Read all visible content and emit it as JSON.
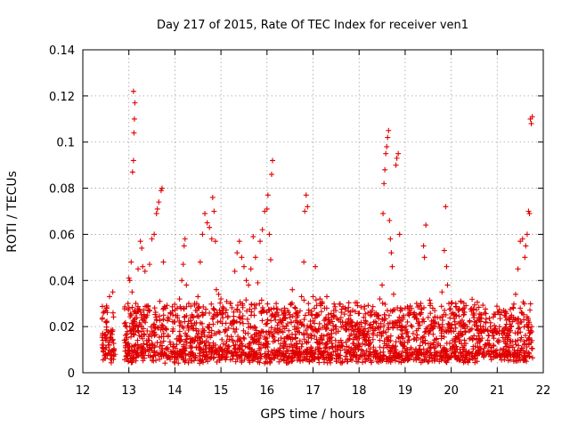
{
  "chart_data": {
    "type": "scatter",
    "title": "Day 217 of 2015, Rate Of TEC Index for receiver ven1",
    "xlabel": "GPS time / hours",
    "ylabel": "ROTI / TECUs",
    "xlim": [
      12,
      22
    ],
    "ylim": [
      0,
      0.14
    ],
    "x_ticks": [
      "12",
      "13",
      "14",
      "15",
      "16",
      "17",
      "18",
      "19",
      "20",
      "21",
      "22"
    ],
    "y_ticks": [
      "0",
      "0.02",
      "0.04",
      "0.06",
      "0.08",
      "0.1",
      "0.12",
      "0.14"
    ],
    "grid": true,
    "marker": "+",
    "color": "#e00000",
    "series": [
      {
        "name": "ven1",
        "points": [
          [
            12.42,
            0.012
          ],
          [
            12.45,
            0.009
          ],
          [
            12.48,
            0.015
          ],
          [
            12.5,
            0.022
          ],
          [
            12.52,
            0.028
          ],
          [
            12.55,
            0.012
          ],
          [
            12.58,
            0.033
          ],
          [
            12.6,
            0.006
          ],
          [
            12.62,
            0.018
          ],
          [
            12.65,
            0.035
          ],
          [
            12.67,
            0.01
          ],
          [
            12.7,
            0.008
          ],
          [
            12.92,
            0.013
          ],
          [
            12.95,
            0.02
          ],
          [
            12.98,
            0.03
          ],
          [
            13.0,
            0.041
          ],
          [
            13.02,
            0.04
          ],
          [
            13.05,
            0.048
          ],
          [
            13.07,
            0.035
          ],
          [
            13.08,
            0.087
          ],
          [
            13.1,
            0.092
          ],
          [
            13.11,
            0.104
          ],
          [
            13.12,
            0.11
          ],
          [
            13.13,
            0.117
          ],
          [
            13.1,
            0.122
          ],
          [
            13.15,
            0.02
          ],
          [
            13.2,
            0.045
          ],
          [
            13.25,
            0.057
          ],
          [
            13.28,
            0.054
          ],
          [
            13.3,
            0.046
          ],
          [
            13.35,
            0.044
          ],
          [
            13.4,
            0.025
          ],
          [
            13.45,
            0.047
          ],
          [
            13.5,
            0.058
          ],
          [
            13.55,
            0.06
          ],
          [
            13.6,
            0.069
          ],
          [
            13.62,
            0.071
          ],
          [
            13.65,
            0.074
          ],
          [
            13.7,
            0.079
          ],
          [
            13.72,
            0.08
          ],
          [
            13.75,
            0.048
          ],
          [
            13.8,
            0.028
          ],
          [
            13.85,
            0.024
          ],
          [
            13.9,
            0.026
          ],
          [
            13.95,
            0.018
          ],
          [
            14.0,
            0.022
          ],
          [
            14.05,
            0.028
          ],
          [
            14.1,
            0.032
          ],
          [
            14.15,
            0.04
          ],
          [
            14.18,
            0.047
          ],
          [
            14.2,
            0.055
          ],
          [
            14.22,
            0.058
          ],
          [
            14.25,
            0.038
          ],
          [
            14.3,
            0.03
          ],
          [
            14.35,
            0.02
          ],
          [
            14.4,
            0.024
          ],
          [
            14.45,
            0.027
          ],
          [
            14.5,
            0.033
          ],
          [
            14.55,
            0.048
          ],
          [
            14.6,
            0.06
          ],
          [
            14.65,
            0.069
          ],
          [
            14.7,
            0.065
          ],
          [
            14.75,
            0.063
          ],
          [
            14.8,
            0.058
          ],
          [
            14.82,
            0.076
          ],
          [
            14.85,
            0.07
          ],
          [
            14.88,
            0.057
          ],
          [
            14.9,
            0.036
          ],
          [
            14.95,
            0.034
          ],
          [
            15.0,
            0.032
          ],
          [
            15.05,
            0.028
          ],
          [
            15.1,
            0.026
          ],
          [
            15.15,
            0.024
          ],
          [
            15.2,
            0.03
          ],
          [
            15.25,
            0.022
          ],
          [
            15.3,
            0.044
          ],
          [
            15.35,
            0.052
          ],
          [
            15.4,
            0.057
          ],
          [
            15.45,
            0.05
          ],
          [
            15.5,
            0.046
          ],
          [
            15.55,
            0.04
          ],
          [
            15.6,
            0.038
          ],
          [
            15.65,
            0.045
          ],
          [
            15.7,
            0.059
          ],
          [
            15.75,
            0.05
          ],
          [
            15.8,
            0.039
          ],
          [
            15.85,
            0.057
          ],
          [
            15.9,
            0.062
          ],
          [
            15.95,
            0.07
          ],
          [
            16.0,
            0.071
          ],
          [
            16.02,
            0.077
          ],
          [
            16.05,
            0.06
          ],
          [
            16.08,
            0.049
          ],
          [
            16.1,
            0.086
          ],
          [
            16.12,
            0.092
          ],
          [
            16.15,
            0.028
          ],
          [
            16.2,
            0.03
          ],
          [
            16.25,
            0.025
          ],
          [
            16.3,
            0.022
          ],
          [
            16.35,
            0.02
          ],
          [
            16.4,
            0.025
          ],
          [
            16.45,
            0.027
          ],
          [
            16.5,
            0.024
          ],
          [
            16.55,
            0.036
          ],
          [
            16.6,
            0.02
          ],
          [
            16.65,
            0.024
          ],
          [
            16.7,
            0.022
          ],
          [
            16.75,
            0.033
          ],
          [
            16.8,
            0.048
          ],
          [
            16.82,
            0.07
          ],
          [
            16.85,
            0.077
          ],
          [
            16.88,
            0.072
          ],
          [
            16.9,
            0.03
          ],
          [
            16.95,
            0.02
          ],
          [
            17.0,
            0.033
          ],
          [
            17.05,
            0.046
          ],
          [
            17.1,
            0.025
          ],
          [
            17.15,
            0.032
          ],
          [
            17.2,
            0.03
          ],
          [
            17.25,
            0.028
          ],
          [
            17.3,
            0.033
          ],
          [
            17.35,
            0.022
          ],
          [
            17.4,
            0.024
          ],
          [
            17.45,
            0.027
          ],
          [
            17.5,
            0.02
          ],
          [
            17.55,
            0.018
          ],
          [
            17.6,
            0.022
          ],
          [
            17.65,
            0.02
          ],
          [
            17.7,
            0.019
          ],
          [
            17.75,
            0.022
          ],
          [
            17.8,
            0.016
          ],
          [
            17.85,
            0.02
          ],
          [
            17.9,
            0.018
          ],
          [
            17.95,
            0.021
          ],
          [
            18.0,
            0.019
          ],
          [
            18.05,
            0.02
          ],
          [
            18.1,
            0.024
          ],
          [
            18.15,
            0.022
          ],
          [
            18.2,
            0.018
          ],
          [
            18.25,
            0.021
          ],
          [
            18.3,
            0.02
          ],
          [
            18.35,
            0.019
          ],
          [
            18.4,
            0.025
          ],
          [
            18.45,
            0.032
          ],
          [
            18.5,
            0.038
          ],
          [
            18.52,
            0.069
          ],
          [
            18.54,
            0.082
          ],
          [
            18.56,
            0.088
          ],
          [
            18.58,
            0.095
          ],
          [
            18.6,
            0.098
          ],
          [
            18.62,
            0.102
          ],
          [
            18.64,
            0.105
          ],
          [
            18.66,
            0.066
          ],
          [
            18.68,
            0.058
          ],
          [
            18.7,
            0.052
          ],
          [
            18.72,
            0.046
          ],
          [
            18.75,
            0.034
          ],
          [
            18.8,
            0.09
          ],
          [
            18.82,
            0.093
          ],
          [
            18.85,
            0.095
          ],
          [
            18.88,
            0.06
          ],
          [
            18.9,
            0.028
          ],
          [
            18.95,
            0.024
          ],
          [
            19.0,
            0.028
          ],
          [
            19.05,
            0.022
          ],
          [
            19.1,
            0.026
          ],
          [
            19.15,
            0.02
          ],
          [
            19.2,
            0.024
          ],
          [
            19.25,
            0.03
          ],
          [
            19.3,
            0.022
          ],
          [
            19.35,
            0.026
          ],
          [
            19.4,
            0.055
          ],
          [
            19.42,
            0.05
          ],
          [
            19.45,
            0.064
          ],
          [
            19.5,
            0.024
          ],
          [
            19.55,
            0.03
          ],
          [
            19.6,
            0.028
          ],
          [
            19.65,
            0.022
          ],
          [
            19.7,
            0.024
          ],
          [
            19.75,
            0.02
          ],
          [
            19.8,
            0.035
          ],
          [
            19.85,
            0.053
          ],
          [
            19.88,
            0.072
          ],
          [
            19.9,
            0.046
          ],
          [
            19.92,
            0.038
          ],
          [
            19.95,
            0.03
          ],
          [
            20.0,
            0.03
          ],
          [
            20.05,
            0.025
          ],
          [
            20.1,
            0.03
          ],
          [
            20.15,
            0.027
          ],
          [
            20.2,
            0.022
          ],
          [
            20.25,
            0.02
          ],
          [
            20.3,
            0.018
          ],
          [
            20.35,
            0.02
          ],
          [
            20.4,
            0.022
          ],
          [
            20.45,
            0.019
          ],
          [
            20.5,
            0.025
          ],
          [
            20.55,
            0.02
          ],
          [
            20.6,
            0.024
          ],
          [
            20.65,
            0.018
          ],
          [
            20.7,
            0.02
          ],
          [
            20.75,
            0.022
          ],
          [
            20.8,
            0.018
          ],
          [
            20.85,
            0.02
          ],
          [
            20.9,
            0.016
          ],
          [
            20.95,
            0.019
          ],
          [
            21.0,
            0.018
          ],
          [
            21.05,
            0.02
          ],
          [
            21.1,
            0.017
          ],
          [
            21.15,
            0.019
          ],
          [
            21.2,
            0.021
          ],
          [
            21.25,
            0.016
          ],
          [
            21.3,
            0.02
          ],
          [
            21.35,
            0.028
          ],
          [
            21.4,
            0.034
          ],
          [
            21.45,
            0.045
          ],
          [
            21.5,
            0.057
          ],
          [
            21.55,
            0.058
          ],
          [
            21.6,
            0.05
          ],
          [
            21.62,
            0.055
          ],
          [
            21.65,
            0.06
          ],
          [
            21.68,
            0.07
          ],
          [
            21.7,
            0.069
          ],
          [
            21.72,
            0.11
          ],
          [
            21.74,
            0.108
          ],
          [
            21.76,
            0.111
          ],
          [
            21.75,
            0.02
          ]
        ]
      }
    ]
  }
}
